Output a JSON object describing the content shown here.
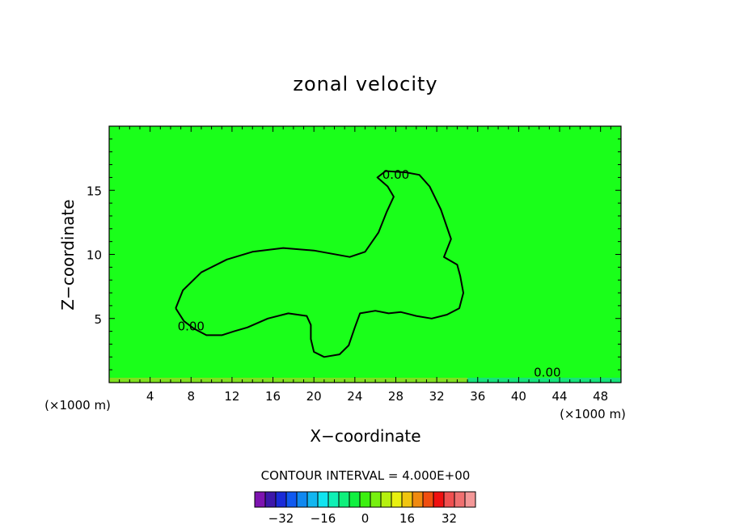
{
  "chart_data": {
    "type": "contour",
    "title": "zonal velocity",
    "xlabel": "X−coordinate",
    "ylabel": "Z−coordinate",
    "x_unit_left": "(×1000 m)",
    "x_unit_right": "(×1000 m)",
    "xlim": [
      0,
      50
    ],
    "ylim": [
      0,
      20
    ],
    "x_ticks": [
      4,
      8,
      12,
      16,
      20,
      24,
      28,
      32,
      36,
      40,
      44,
      48
    ],
    "x_tick_labels": [
      "4",
      "8",
      "12",
      "16",
      "20",
      "24",
      "28",
      "32",
      "36",
      "40",
      "44",
      "48"
    ],
    "y_ticks": [
      5,
      10,
      15
    ],
    "y_tick_labels": [
      "5",
      "10",
      "15"
    ],
    "background_fill_color": "#1aff1a",
    "contour_labels": [
      {
        "text": "0.00",
        "x": 28,
        "z": 16.2
      },
      {
        "text": "0.00",
        "x": 8,
        "z": 4.4
      },
      {
        "text": "0.00",
        "x": 42.8,
        "z": 0.8
      }
    ],
    "zero_contour_main": [
      [
        6.5,
        5.8
      ],
      [
        7.2,
        7.2
      ],
      [
        9,
        8.6
      ],
      [
        11.5,
        9.6
      ],
      [
        14,
        10.2
      ],
      [
        17,
        10.5
      ],
      [
        20,
        10.3
      ],
      [
        23.5,
        9.8
      ],
      [
        25,
        10.2
      ],
      [
        26.3,
        11.7
      ],
      [
        27.1,
        13.3
      ],
      [
        27.8,
        14.5
      ],
      [
        27.2,
        15.3
      ],
      [
        26.2,
        16.0
      ],
      [
        27,
        16.5
      ],
      [
        29,
        16.4
      ],
      [
        30.3,
        16.2
      ],
      [
        31.3,
        15.3
      ],
      [
        32.4,
        13.5
      ],
      [
        33.4,
        11.2
      ],
      [
        32.7,
        9.8
      ],
      [
        34,
        9.2
      ],
      [
        34.3,
        8.3
      ],
      [
        34.6,
        7.0
      ],
      [
        34.2,
        5.8
      ],
      [
        33,
        5.3
      ],
      [
        31.5,
        5.0
      ],
      [
        30,
        5.2
      ],
      [
        28.5,
        5.5
      ],
      [
        27.3,
        5.4
      ],
      [
        26,
        5.6
      ],
      [
        24.5,
        5.4
      ],
      [
        24,
        4.3
      ],
      [
        23.4,
        2.9
      ],
      [
        22.5,
        2.2
      ],
      [
        21,
        2.0
      ],
      [
        20,
        2.4
      ],
      [
        19.7,
        3.4
      ],
      [
        19.7,
        4.5
      ],
      [
        19.3,
        5.2
      ],
      [
        17.5,
        5.4
      ],
      [
        15.5,
        5.0
      ],
      [
        13.5,
        4.3
      ],
      [
        12.2,
        4.0
      ],
      [
        11,
        3.7
      ],
      [
        9.5,
        3.7
      ],
      [
        8.3,
        4.2
      ],
      [
        7.3,
        4.8
      ],
      [
        6.5,
        5.8
      ]
    ],
    "lower_boundary_bands": [
      {
        "x_start": 0,
        "x_end": 35,
        "color": "#7fe01f"
      },
      {
        "x_start": 35,
        "x_end": 50,
        "color": "#16e37a"
      }
    ],
    "colorbar": {
      "title": "CONTOUR INTERVAL = 4.000E+00",
      "colors": [
        "#7d13b0",
        "#3d17aa",
        "#1a2bd8",
        "#1059f0",
        "#1088f0",
        "#12b6f0",
        "#10e4f0",
        "#0ff0b5",
        "#0ff07c",
        "#10f040",
        "#3cf010",
        "#77f010",
        "#b5f010",
        "#e8f010",
        "#f0c510",
        "#f08a10",
        "#f04e10",
        "#f01010",
        "#f05050",
        "#f07070",
        "#f49898"
      ],
      "tick_values": [
        -32,
        -16,
        0,
        16,
        32
      ],
      "tick_labels": [
        "−32",
        "−16",
        "0",
        "16",
        "32"
      ],
      "range": [
        -42,
        42
      ]
    }
  }
}
